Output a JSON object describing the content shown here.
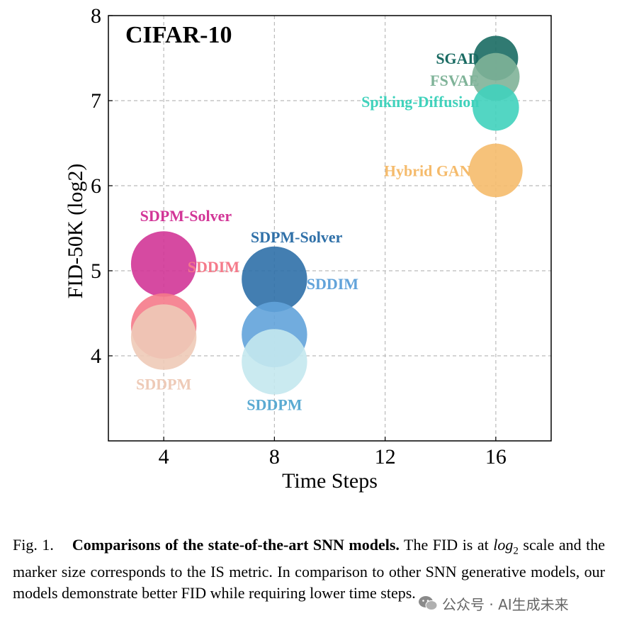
{
  "chart_data": {
    "type": "scatter",
    "title": "CIFAR-10",
    "xlabel": "Time Steps",
    "ylabel": "FID-50K (log2)",
    "xlim": [
      2,
      18
    ],
    "ylim": [
      3,
      8
    ],
    "xticks": [
      4,
      8,
      12,
      16
    ],
    "yticks": [
      4,
      5,
      6,
      7,
      8
    ],
    "grid": true,
    "points": [
      {
        "name": "SGAD",
        "x": 16,
        "y": 7.5,
        "size": 0.75,
        "color": "#1a6b63",
        "label_anchor": "left",
        "label_dx": -0.6,
        "label_dy": 0.0
      },
      {
        "name": "FSVAE",
        "x": 16,
        "y": 7.28,
        "size": 0.8,
        "color": "#7fb398",
        "label_anchor": "left",
        "label_dx": -0.6,
        "label_dy": -0.04
      },
      {
        "name": "Spiking-Diffusion",
        "x": 16,
        "y": 6.92,
        "size": 0.78,
        "color": "#40d2bc",
        "label_anchor": "left",
        "label_dx": -0.6,
        "label_dy": 0.07
      },
      {
        "name": "Hybrid GAN",
        "x": 16,
        "y": 6.18,
        "size": 0.9,
        "color": "#f5bb6c",
        "label_anchor": "left",
        "label_dx": -0.9,
        "label_dy": 0.0
      },
      {
        "name": "SDPM-Solver",
        "x": 4,
        "y": 5.08,
        "size": 1.1,
        "color": "#d23697",
        "label_anchor": "middle",
        "label_dx": 0.8,
        "label_dy": 0.57
      },
      {
        "name": "SDDIM",
        "x": 4,
        "y": 4.35,
        "size": 1.1,
        "color": "#f57a8a",
        "label_anchor": "middle",
        "label_dx": 1.8,
        "label_dy": 0.7
      },
      {
        "name": "SDDPM",
        "x": 4,
        "y": 4.22,
        "size": 1.1,
        "color": "#eecab7",
        "label_anchor": "middle",
        "label_dx": 0,
        "label_dy": -0.55
      },
      {
        "name": "SDPM-Solver",
        "x": 8,
        "y": 4.9,
        "size": 1.1,
        "color": "#2f70a8",
        "label_anchor": "middle",
        "label_dx": 0.8,
        "label_dy": 0.5
      },
      {
        "name": "SDDIM",
        "x": 8,
        "y": 4.25,
        "size": 1.1,
        "color": "#62a3da",
        "label_anchor": "middle",
        "label_dx": 2.1,
        "label_dy": 0.6
      },
      {
        "name": "SDDPM",
        "x": 8,
        "y": 3.93,
        "size": 1.1,
        "color": "#c4e8ee",
        "label_anchor": "middle",
        "label_dx": 0,
        "label_dy": -0.5,
        "label_color": "#5aaad2"
      }
    ]
  },
  "caption": {
    "prefix": "Fig. 1.",
    "bold": "Comparisons of the state-of-the-art SNN models.",
    "text1": " The FID is at ",
    "math": "log",
    "math_sub": "2",
    "text2": " scale and the marker size corresponds to the IS metric. In comparison to other SNN generative models, our models demonstrate better FID while requiring lower time steps."
  },
  "watermark": {
    "text": "公众号 · AI生成未来"
  }
}
